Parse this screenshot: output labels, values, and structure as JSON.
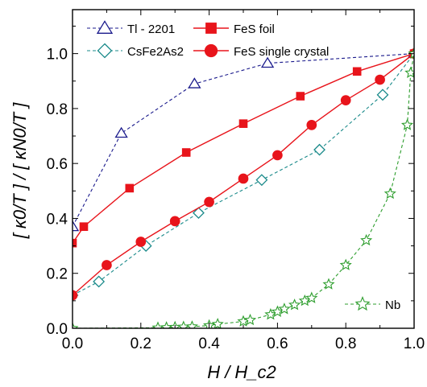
{
  "chart_data": {
    "type": "scatter",
    "title": "",
    "xlabel": "H / H_c2",
    "ylabel": "[ κ0/T ] / [ κN0/T ]",
    "xlim": [
      0.0,
      1.0
    ],
    "ylim": [
      0.0,
      1.16
    ],
    "xticks": [
      "0.0",
      "0.2",
      "0.4",
      "0.6",
      "0.8",
      "1.0"
    ],
    "yticks": [
      "0.0",
      "0.2",
      "0.4",
      "0.6",
      "0.8",
      "1.0"
    ],
    "grid": false,
    "legend_position": "top-left",
    "series": [
      {
        "name": "Tl - 2201",
        "marker": "triangle-open",
        "line": "dashed",
        "color": "#1a1a8c",
        "x": [
          0.0,
          0.143,
          0.357,
          0.571,
          1.0
        ],
        "y": [
          0.37,
          0.71,
          0.89,
          0.965,
          1.0
        ]
      },
      {
        "name": "CsFe2As2",
        "marker": "diamond-open",
        "line": "dashed",
        "color": "#1a8a8a",
        "x": [
          0.0,
          0.077,
          0.215,
          0.369,
          0.554,
          0.723,
          0.908,
          1.0
        ],
        "y": [
          0.12,
          0.17,
          0.3,
          0.42,
          0.54,
          0.65,
          0.85,
          1.0
        ]
      },
      {
        "name": "FeS foil",
        "marker": "square-filled",
        "line": "solid",
        "color": "#e8141b",
        "x": [
          0.0,
          0.033,
          0.167,
          0.333,
          0.5,
          0.667,
          0.833,
          1.0
        ],
        "y": [
          0.31,
          0.37,
          0.51,
          0.64,
          0.745,
          0.845,
          0.935,
          1.0
        ]
      },
      {
        "name": "FeS single crystal",
        "marker": "circle-filled",
        "line": "solid",
        "color": "#e8141b",
        "x": [
          0.0,
          0.1,
          0.2,
          0.3,
          0.4,
          0.5,
          0.6,
          0.7,
          0.8,
          0.9,
          1.0
        ],
        "y": [
          0.12,
          0.23,
          0.315,
          0.39,
          0.46,
          0.545,
          0.63,
          0.74,
          0.83,
          0.905,
          1.0
        ]
      },
      {
        "name": "Nb",
        "marker": "star-open",
        "line": "dashed",
        "color": "#2e9e2e",
        "x": [
          0.0,
          0.25,
          0.275,
          0.3,
          0.325,
          0.35,
          0.4,
          0.425,
          0.5,
          0.52,
          0.58,
          0.6,
          0.62,
          0.65,
          0.68,
          0.7,
          0.75,
          0.8,
          0.86,
          0.93,
          0.98,
          0.99,
          1.0
        ],
        "y": [
          0.0,
          0.002,
          0.003,
          0.004,
          0.005,
          0.006,
          0.01,
          0.015,
          0.025,
          0.03,
          0.05,
          0.06,
          0.07,
          0.085,
          0.1,
          0.11,
          0.16,
          0.23,
          0.32,
          0.49,
          0.74,
          0.93,
          1.0
        ]
      }
    ]
  }
}
